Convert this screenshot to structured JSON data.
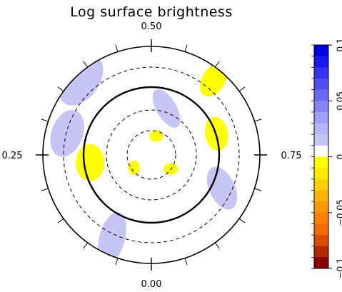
{
  "chart_data": {
    "type": "heatmap",
    "title": "Log surface brightness",
    "phase_labels": [
      "0.00",
      "0.25",
      "0.50",
      "0.75"
    ],
    "phase_values": [
      0.0,
      0.25,
      0.5,
      0.75
    ],
    "rings": [
      {
        "style": "solid",
        "weight": "thick",
        "kind": "outer-boundary"
      },
      {
        "style": "solid",
        "weight": "thick",
        "kind": "reference"
      },
      {
        "style": "dashed",
        "weight": "thin",
        "kind": "latitude"
      },
      {
        "style": "dashed",
        "weight": "thin",
        "kind": "latitude"
      },
      {
        "style": "dashed",
        "weight": "thin",
        "kind": "latitude"
      }
    ],
    "colorbar": {
      "range": [
        -0.1,
        0.1
      ],
      "tick_labels": [
        "0.1",
        "0.05",
        "0",
        "−0.05",
        "−0.1"
      ],
      "tick_values": [
        0.1,
        0.05,
        0.0,
        -0.05,
        -0.1
      ],
      "levels": [
        {
          "min": 0.09,
          "max": 0.1,
          "color": "#0000e6"
        },
        {
          "min": 0.08,
          "max": 0.09,
          "color": "#1a1aee"
        },
        {
          "min": 0.07,
          "max": 0.08,
          "color": "#3434f2"
        },
        {
          "min": 0.06,
          "max": 0.07,
          "color": "#4f4ff4"
        },
        {
          "min": 0.05,
          "max": 0.06,
          "color": "#6a6af6"
        },
        {
          "min": 0.04,
          "max": 0.05,
          "color": "#8585f8"
        },
        {
          "min": 0.03,
          "max": 0.04,
          "color": "#a0a0fa"
        },
        {
          "min": 0.02,
          "max": 0.03,
          "color": "#b6b6fb"
        },
        {
          "min": 0.01,
          "max": 0.02,
          "color": "#c6c6f6"
        },
        {
          "min": 0.0,
          "max": 0.01,
          "color": "#ffffff"
        },
        {
          "min": -0.01,
          "max": 0.0,
          "color": "#ffff00"
        },
        {
          "min": -0.02,
          "max": -0.01,
          "color": "#ffea00"
        },
        {
          "min": -0.03,
          "max": -0.02,
          "color": "#ffd100"
        },
        {
          "min": -0.04,
          "max": -0.03,
          "color": "#ffb200"
        },
        {
          "min": -0.05,
          "max": -0.04,
          "color": "#ff9800"
        },
        {
          "min": -0.06,
          "max": -0.05,
          "color": "#ff8000"
        },
        {
          "min": -0.07,
          "max": -0.06,
          "color": "#f26b00"
        },
        {
          "min": -0.08,
          "max": -0.07,
          "color": "#d94c00"
        },
        {
          "min": -0.09,
          "max": -0.08,
          "color": "#b22800"
        },
        {
          "min": -0.1,
          "max": -0.09,
          "color": "#880000"
        }
      ]
    },
    "patches": [
      {
        "sign": "positive",
        "value": 0.015,
        "phase": 0.38,
        "radius": 0.95
      },
      {
        "sign": "positive",
        "value": 0.015,
        "phase": 0.29,
        "radius": 0.8
      },
      {
        "sign": "positive",
        "value": 0.015,
        "phase": 0.55,
        "radius": 0.45
      },
      {
        "sign": "positive",
        "value": 0.015,
        "phase": 0.07,
        "radius": 0.85
      },
      {
        "sign": "positive",
        "value": 0.015,
        "phase": 0.82,
        "radius": 0.72
      },
      {
        "sign": "negative",
        "value": -0.005,
        "phase": 0.61,
        "radius": 0.9
      },
      {
        "sign": "negative",
        "value": -0.005,
        "phase": 0.7,
        "radius": 0.63
      },
      {
        "sign": "negative",
        "value": -0.005,
        "phase": 0.23,
        "radius": 0.57
      },
      {
        "sign": "negative",
        "value": -0.005,
        "phase": 0.54,
        "radius": 0.18
      },
      {
        "sign": "negative",
        "value": -0.005,
        "phase": 0.85,
        "radius": 0.22
      },
      {
        "sign": "negative",
        "value": -0.005,
        "phase": 0.15,
        "radius": 0.2
      }
    ]
  }
}
